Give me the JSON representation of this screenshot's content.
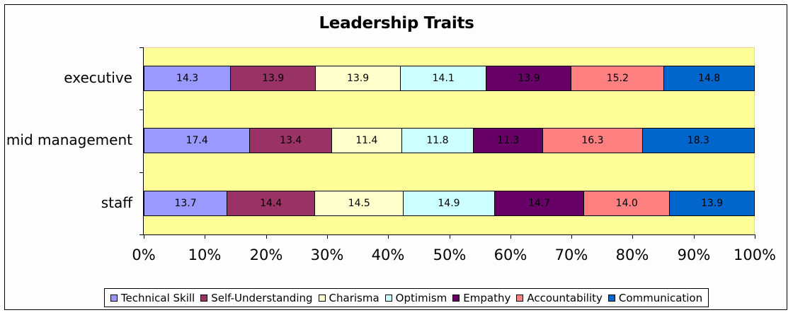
{
  "chart_data": {
    "type": "bar",
    "orientation": "horizontal",
    "stacking": "percent",
    "title": "Leadership Traits",
    "xlabel": "",
    "ylabel": "",
    "xlim": [
      0,
      100
    ],
    "x_ticks": [
      "0%",
      "10%",
      "20%",
      "30%",
      "40%",
      "50%",
      "60%",
      "70%",
      "80%",
      "90%",
      "100%"
    ],
    "categories": [
      "executive",
      "mid management",
      "staff"
    ],
    "series": [
      {
        "name": "Technical Skill",
        "color": "#9999ff",
        "values": [
          14.3,
          17.4,
          13.7
        ]
      },
      {
        "name": "Self-Understanding",
        "color": "#993366",
        "values": [
          13.9,
          13.4,
          14.4
        ]
      },
      {
        "name": "Charisma",
        "color": "#ffffcc",
        "values": [
          13.9,
          11.4,
          14.5
        ]
      },
      {
        "name": "Optimism",
        "color": "#ccffff",
        "values": [
          14.1,
          11.8,
          14.9
        ]
      },
      {
        "name": "Empathy",
        "color": "#660066",
        "values": [
          13.9,
          11.3,
          14.7
        ]
      },
      {
        "name": "Accountability",
        "color": "#ff8080",
        "values": [
          15.2,
          16.3,
          14.0
        ]
      },
      {
        "name": "Communication",
        "color": "#0066cc",
        "values": [
          14.8,
          18.3,
          13.9
        ]
      }
    ],
    "data_labels": true,
    "grid": false,
    "legend_position": "bottom",
    "plot_background": "#ffff99"
  }
}
